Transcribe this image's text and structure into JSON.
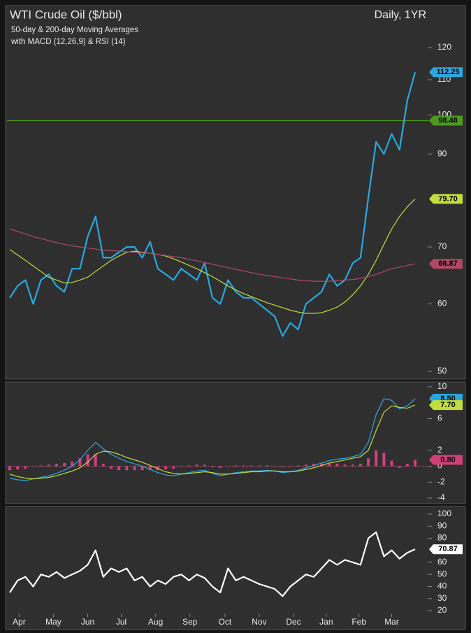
{
  "chart_data": [
    {
      "type": "line",
      "title": "WTI Crude Oil ($/bbl)",
      "subtitle": [
        "50-day & 200-day Moving Averages",
        "with MACD (12,26,9) & RSI (14)"
      ],
      "period": "Daily, 1YR",
      "log_scale": true,
      "xlim": [
        0,
        52
      ],
      "ylim": [
        50,
        120
      ],
      "yticks": [
        50,
        60,
        70,
        90,
        100,
        110,
        120
      ],
      "reference_lines": [
        {
          "value": 98.48,
          "label": "98.48",
          "color": "#4e9a1e"
        }
      ],
      "series": [
        {
          "name": "WTI",
          "color": "#29a8e0",
          "width": 2.2,
          "tag": "112.25",
          "values": [
            61,
            63,
            64,
            60,
            64,
            65,
            63,
            62,
            66,
            66,
            72,
            76,
            68,
            68,
            69,
            70,
            70,
            68,
            71,
            66,
            65,
            64,
            66,
            65,
            64,
            67,
            61,
            60,
            64,
            62,
            61,
            61,
            60,
            59,
            58,
            55,
            57,
            56,
            60,
            61,
            62,
            65,
            63,
            64,
            67,
            68,
            80,
            93,
            90,
            95,
            91,
            104,
            112.25
          ]
        },
        {
          "name": "50-day MA",
          "color": "#c2dc3c",
          "width": 1.2,
          "tag": "79.70",
          "values": [
            69.5,
            68.5,
            67.5,
            66.5,
            65.5,
            64.5,
            64.0,
            63.5,
            63.6,
            64.0,
            64.5,
            65.5,
            66.5,
            67.5,
            68.3,
            69.0,
            69.2,
            69.0,
            68.8,
            68.6,
            68.3,
            67.8,
            67.2,
            66.6,
            66.0,
            65.3,
            64.6,
            63.8,
            63.0,
            62.3,
            61.7,
            61.2,
            60.7,
            60.2,
            59.8,
            59.4,
            59.0,
            58.7,
            58.5,
            58.5,
            58.6,
            59.0,
            59.5,
            60.3,
            61.5,
            63.0,
            65.0,
            67.5,
            70.5,
            73.5,
            76.0,
            78.0,
            79.7
          ]
        },
        {
          "name": "200-day MA",
          "color": "#b04868",
          "width": 1.2,
          "tag": "66.87",
          "values": [
            73.5,
            73.0,
            72.5,
            72.0,
            71.6,
            71.2,
            70.8,
            70.5,
            70.2,
            70.0,
            69.8,
            69.6,
            69.4,
            69.3,
            69.2,
            69.1,
            69.0,
            68.9,
            68.8,
            68.6,
            68.4,
            68.2,
            68.0,
            67.7,
            67.4,
            67.1,
            66.8,
            66.5,
            66.2,
            65.9,
            65.6,
            65.3,
            65.0,
            64.8,
            64.6,
            64.4,
            64.2,
            64.0,
            63.9,
            63.8,
            63.8,
            63.8,
            63.9,
            64.0,
            64.1,
            64.3,
            64.6,
            65.0,
            65.5,
            66.0,
            66.3,
            66.6,
            66.87
          ]
        }
      ]
    },
    {
      "type": "line",
      "xlim": [
        0,
        52
      ],
      "ylim": [
        -4,
        10
      ],
      "yticks": [
        -4,
        -2,
        0,
        2,
        6,
        10
      ],
      "series": [
        {
          "name": "MACD Histogram",
          "style": "bar",
          "color": "#d0407a",
          "tag": "0.80",
          "values": [
            -0.5,
            -0.4,
            -0.3,
            0,
            0.1,
            0.2,
            0.3,
            0.4,
            0.6,
            1.0,
            1.5,
            1.5,
            0.3,
            -0.3,
            -0.5,
            -0.5,
            -0.5,
            -0.5,
            -0.5,
            -0.5,
            -0.4,
            -0.3,
            0,
            0.1,
            0.2,
            0.2,
            -0.1,
            -0.2,
            0,
            0.1,
            0.1,
            0.1,
            0.1,
            0.1,
            0,
            -0.1,
            0,
            0.1,
            0.2,
            0.3,
            0.3,
            0.3,
            0.3,
            0.2,
            0.2,
            0.3,
            1.0,
            2.0,
            1.7,
            0.7,
            -0.2,
            0.3,
            0.8
          ]
        },
        {
          "name": "MACD",
          "color": "#29a8e0",
          "width": 1.2,
          "tag": "8.50",
          "values": [
            -1.5,
            -1.7,
            -1.8,
            -1.6,
            -1.4,
            -1.2,
            -0.9,
            -0.5,
            0.0,
            0.8,
            2.0,
            3.0,
            2.2,
            1.5,
            1.0,
            0.6,
            0.3,
            0.0,
            -0.4,
            -0.8,
            -1.1,
            -1.2,
            -1.0,
            -0.8,
            -0.6,
            -0.5,
            -0.9,
            -1.2,
            -1.0,
            -0.8,
            -0.7,
            -0.6,
            -0.6,
            -0.5,
            -0.6,
            -0.8,
            -0.7,
            -0.5,
            -0.2,
            0.1,
            0.4,
            0.7,
            0.9,
            1.0,
            1.2,
            1.5,
            3.0,
            6.5,
            8.5,
            8.3,
            7.2,
            7.6,
            8.5
          ]
        },
        {
          "name": "Signal",
          "color": "#c2dc3c",
          "width": 1.2,
          "tag": "7.70",
          "values": [
            -1.0,
            -1.3,
            -1.5,
            -1.6,
            -1.5,
            -1.4,
            -1.2,
            -0.9,
            -0.6,
            -0.2,
            0.5,
            1.5,
            1.9,
            1.8,
            1.5,
            1.1,
            0.8,
            0.5,
            0.1,
            -0.3,
            -0.7,
            -0.9,
            -1.0,
            -0.9,
            -0.8,
            -0.7,
            -0.8,
            -1.0,
            -1.0,
            -0.9,
            -0.8,
            -0.7,
            -0.7,
            -0.6,
            -0.6,
            -0.7,
            -0.7,
            -0.6,
            -0.4,
            -0.2,
            0.1,
            0.4,
            0.6,
            0.8,
            1.0,
            1.2,
            2.0,
            4.5,
            6.8,
            7.6,
            7.4,
            7.3,
            7.7
          ]
        }
      ]
    },
    {
      "type": "line",
      "xlim": [
        0,
        52
      ],
      "ylim": [
        20,
        100
      ],
      "yticks": [
        20,
        30,
        40,
        50,
        60,
        80,
        90,
        100
      ],
      "xticks": [
        {
          "value": 1.2,
          "label": "Apr"
        },
        {
          "value": 5.6,
          "label": "May"
        },
        {
          "value": 10.0,
          "label": "Jun"
        },
        {
          "value": 14.3,
          "label": "Jul"
        },
        {
          "value": 18.7,
          "label": "Aug"
        },
        {
          "value": 23.1,
          "label": "Sep"
        },
        {
          "value": 27.6,
          "label": "Oct"
        },
        {
          "value": 32.0,
          "label": "Nov"
        },
        {
          "value": 36.4,
          "label": "Dec"
        },
        {
          "value": 40.6,
          "label": "Jan"
        },
        {
          "value": 44.8,
          "label": "Feb"
        },
        {
          "value": 49.0,
          "label": "Mar"
        }
      ],
      "series": [
        {
          "name": "RSI",
          "color": "#ffffff",
          "width": 2.2,
          "tag": "70.87",
          "values": [
            35,
            45,
            48,
            40,
            50,
            48,
            52,
            47,
            50,
            53,
            58,
            70,
            48,
            55,
            52,
            55,
            45,
            48,
            40,
            45,
            42,
            48,
            50,
            45,
            50,
            47,
            40,
            35,
            55,
            45,
            48,
            45,
            42,
            40,
            38,
            32,
            40,
            45,
            50,
            48,
            55,
            62,
            58,
            62,
            60,
            58,
            80,
            85,
            65,
            70,
            63,
            68,
            70.87
          ]
        }
      ]
    }
  ]
}
